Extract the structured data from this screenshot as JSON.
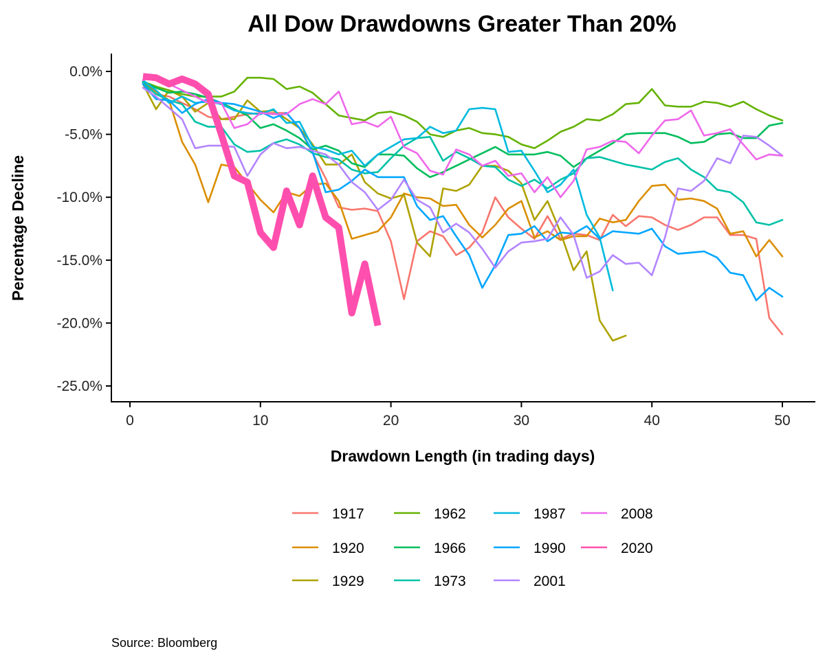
{
  "chart_data": {
    "type": "line",
    "title": "All Dow Drawdowns Greater Than 20%",
    "xlabel": "Drawdown Length (in trading days)",
    "ylabel": "Percentage Decline",
    "xlim": [
      0,
      52
    ],
    "ylim": [
      -26,
      1.2
    ],
    "xticks": [
      0,
      10,
      20,
      30,
      40,
      50
    ],
    "xtick_labels": [
      "0",
      "10",
      "20",
      "30",
      "40",
      "50"
    ],
    "yticks": [
      0,
      -5,
      -10,
      -15,
      -20,
      -25
    ],
    "ytick_labels": [
      "0.0%",
      "-5.0%",
      "-10.0%",
      "-15.0%",
      "-20.0%",
      "-25.0%"
    ],
    "grid": false,
    "legend_placement": "bottom",
    "source": "Source:  Bloomberg",
    "series": [
      {
        "name": "1917",
        "color": "#F8766D",
        "values": [
          -1.0,
          -1.8,
          -2.0,
          -2.5,
          -3.0,
          -3.6,
          -3.8,
          -3.6,
          -3.4,
          -3.3,
          -3.3,
          -3.3,
          -4.5,
          -6.5,
          -8.5,
          -10.8,
          -11.0,
          -10.9,
          -11.1,
          -13.5,
          -18.1,
          -13.5,
          -12.7,
          -13.1,
          -14.6,
          -14.0,
          -12.8,
          -10.0,
          -11.6,
          -12.5,
          -13.3,
          -11.5,
          -13.3,
          -12.9,
          -13.0,
          -13.4,
          -11.4,
          -12.3,
          -11.5,
          -11.6,
          -12.2,
          -12.6,
          -12.2,
          -11.6,
          -11.6,
          -13.0,
          -13.0,
          -13.3,
          -19.6,
          -20.9
        ]
      },
      {
        "name": "1920",
        "color": "#DB8E00",
        "values": [
          -0.8,
          -1.6,
          -2.3,
          -5.6,
          -7.4,
          -10.4,
          -7.4,
          -7.6,
          -8.9,
          -10.2,
          -11.2,
          -9.6,
          -9.9,
          -9.0,
          -8.9,
          -10.3,
          -13.3,
          -13.0,
          -12.7,
          -11.6,
          -9.7,
          -10.0,
          -10.1,
          -10.7,
          -10.6,
          -12.2,
          -13.2,
          -12.2,
          -10.9,
          -10.3,
          -13.2,
          -12.7,
          -13.4,
          -13.1,
          -13.1,
          -11.7,
          -12.0,
          -11.8,
          -10.3,
          -9.1,
          -9.0,
          -10.2,
          -10.1,
          -10.3,
          -10.9,
          -12.9,
          -12.7,
          -14.7,
          -13.4,
          -14.7
        ]
      },
      {
        "name": "1929",
        "color": "#AEA200",
        "values": [
          -1.0,
          -3.0,
          -1.5,
          -2.0,
          -3.2,
          -2.5,
          -3.8,
          -3.8,
          -2.3,
          -3.2,
          -3.1,
          -3.8,
          -4.5,
          -5.8,
          -7.4,
          -7.4,
          -6.6,
          -8.8,
          -9.7,
          -10.1,
          -9.8,
          -13.6,
          -14.7,
          -9.3,
          -9.5,
          -9.0,
          -7.5,
          -7.5,
          -7.9,
          -8.9,
          -11.8,
          -10.3,
          -12.8,
          -15.8,
          -14.3,
          -19.8,
          -21.4,
          -21.0
        ]
      },
      {
        "name": "1962",
        "color": "#64B200",
        "values": [
          -0.8,
          -1.2,
          -1.5,
          -1.8,
          -2.0,
          -2.0,
          -2.0,
          -1.6,
          -0.5,
          -0.5,
          -0.6,
          -1.4,
          -1.2,
          -1.7,
          -2.6,
          -3.5,
          -3.7,
          -3.9,
          -3.3,
          -3.2,
          -3.5,
          -4.0,
          -5.0,
          -5.2,
          -4.7,
          -4.5,
          -4.9,
          -5.0,
          -5.2,
          -5.8,
          -6.1,
          -5.5,
          -4.8,
          -4.4,
          -3.8,
          -3.9,
          -3.4,
          -2.6,
          -2.5,
          -1.4,
          -2.7,
          -2.8,
          -2.8,
          -2.4,
          -2.5,
          -2.8,
          -2.4,
          -3.0,
          -3.5,
          -3.9
        ]
      },
      {
        "name": "1966",
        "color": "#00BD5C",
        "values": [
          -0.8,
          -1.3,
          -1.7,
          -1.6,
          -1.8,
          -2.1,
          -2.5,
          -3.0,
          -3.5,
          -4.5,
          -4.2,
          -4.7,
          -5.3,
          -6.2,
          -5.9,
          -6.3,
          -7.3,
          -7.6,
          -6.6,
          -6.6,
          -6.7,
          -7.7,
          -8.4,
          -8.0,
          -7.5,
          -7.0,
          -6.5,
          -6.0,
          -6.6,
          -6.6,
          -6.6,
          -6.4,
          -6.7,
          -7.6,
          -6.9,
          -6.3,
          -5.7,
          -5.0,
          -4.9,
          -4.9,
          -4.9,
          -5.2,
          -5.7,
          -5.6,
          -5.0,
          -4.9,
          -5.3,
          -5.3,
          -4.3,
          -4.1
        ]
      },
      {
        "name": "1973",
        "color": "#00C1A7",
        "values": [
          -0.9,
          -1.8,
          -2.3,
          -2.6,
          -4.0,
          -4.4,
          -4.4,
          -5.8,
          -6.4,
          -6.3,
          -5.7,
          -5.4,
          -5.8,
          -6.5,
          -6.8,
          -7.0,
          -7.8,
          -8.1,
          -8.0,
          -6.9,
          -5.9,
          -5.3,
          -5.2,
          -7.1,
          -6.4,
          -6.9,
          -7.5,
          -7.6,
          -8.6,
          -9.1,
          -8.6,
          -9.3,
          -8.6,
          -8.1,
          -6.9,
          -6.8,
          -7.1,
          -7.4,
          -7.6,
          -7.8,
          -7.2,
          -6.9,
          -7.8,
          -8.4,
          -9.4,
          -9.6,
          -10.4,
          -12.0,
          -12.2,
          -11.8
        ]
      },
      {
        "name": "1987",
        "color": "#00BADE",
        "values": [
          -0.7,
          -1.5,
          -2.5,
          -2.0,
          -2.5,
          -2.4,
          -2.6,
          -3.1,
          -3.3,
          -3.4,
          -3.0,
          -4.1,
          -4.0,
          -6.0,
          -6.2,
          -6.6,
          -6.3,
          -7.5,
          -6.6,
          -6.0,
          -5.4,
          -5.3,
          -4.4,
          -4.9,
          -4.7,
          -3.0,
          -2.9,
          -3.0,
          -6.4,
          -6.3,
          -7.9,
          -9.6,
          -9.0,
          -7.8,
          -11.4,
          -13.2,
          -17.4
        ]
      },
      {
        "name": "1990",
        "color": "#00A6FF",
        "values": [
          -1.0,
          -2.2,
          -2.3,
          -3.3,
          -2.6,
          -2.2,
          -2.5,
          -2.6,
          -2.9,
          -3.2,
          -3.7,
          -3.3,
          -4.5,
          -6.4,
          -9.6,
          -9.4,
          -8.7,
          -7.8,
          -8.4,
          -8.4,
          -8.4,
          -10.7,
          -11.8,
          -11.5,
          -13.1,
          -14.6,
          -17.2,
          -15.4,
          -13.0,
          -12.9,
          -12.3,
          -13.5,
          -12.8,
          -12.9,
          -12.3,
          -13.3,
          -12.7,
          -12.8,
          -12.9,
          -12.5,
          -13.9,
          -14.5,
          -14.4,
          -14.3,
          -14.8,
          -16.0,
          -16.2,
          -18.2,
          -17.2,
          -17.9
        ]
      },
      {
        "name": "2001",
        "color": "#B385FF",
        "values": [
          -1.3,
          -2.0,
          -2.9,
          -3.8,
          -6.1,
          -5.9,
          -5.9,
          -6.0,
          -8.3,
          -6.6,
          -5.7,
          -6.1,
          -6.0,
          -6.3,
          -6.6,
          -7.4,
          -8.8,
          -9.6,
          -11.0,
          -10.2,
          -8.6,
          -10.2,
          -10.8,
          -12.8,
          -12.1,
          -12.8,
          -14.1,
          -15.6,
          -14.3,
          -13.6,
          -13.5,
          -13.3,
          -11.6,
          -13.0,
          -16.4,
          -15.9,
          -14.6,
          -15.3,
          -15.2,
          -16.2,
          -13.2,
          -9.3,
          -9.5,
          -8.7,
          -6.9,
          -7.3,
          -5.1,
          -5.2,
          -5.9,
          -6.7
        ]
      },
      {
        "name": "2008",
        "color": "#EF67EB",
        "values": [
          -0.7,
          -0.3,
          -1.0,
          -1.5,
          -2.0,
          -2.5,
          -2.5,
          -4.5,
          -4.2,
          -3.3,
          -3.4,
          -3.4,
          -2.6,
          -2.2,
          -2.6,
          -1.6,
          -4.2,
          -4.0,
          -4.4,
          -3.6,
          -6.0,
          -6.5,
          -7.9,
          -8.2,
          -6.2,
          -6.6,
          -7.5,
          -7.1,
          -8.3,
          -8.1,
          -9.6,
          -8.4,
          -10.0,
          -8.7,
          -6.2,
          -6.0,
          -5.5,
          -5.6,
          -6.5,
          -5.1,
          -3.9,
          -3.8,
          -3.1,
          -5.1,
          -4.9,
          -4.6,
          -5.8,
          -7.0,
          -6.6,
          -6.7
        ]
      },
      {
        "name": "2020",
        "color": "#FF4FAE",
        "highlight": true,
        "values": [
          -0.4,
          -0.5,
          -1.0,
          -0.6,
          -1.0,
          -1.8,
          -5.0,
          -8.3,
          -8.8,
          -12.8,
          -14.0,
          -9.5,
          -12.2,
          -8.3,
          -11.6,
          -12.4,
          -19.2,
          -15.3,
          -20.2
        ]
      }
    ]
  }
}
